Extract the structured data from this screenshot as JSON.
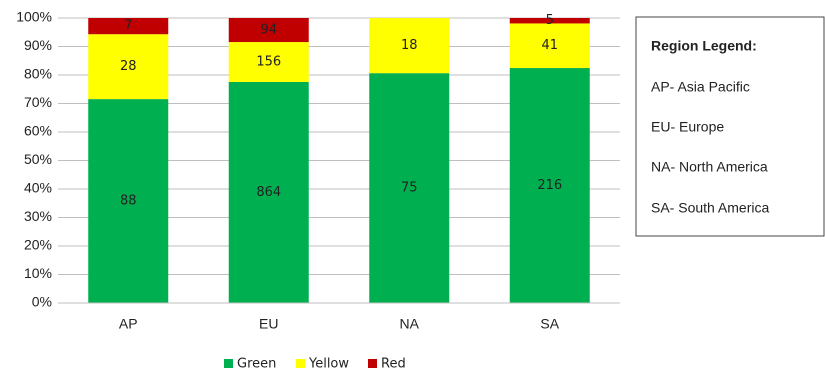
{
  "chart_data": {
    "type": "bar",
    "stacking": "percent",
    "categories": [
      "AP",
      "EU",
      "NA",
      "SA"
    ],
    "series": [
      {
        "name": "Green",
        "color": "#00b050",
        "values": [
          88,
          864,
          75,
          216
        ]
      },
      {
        "name": "Yellow",
        "color": "#ffff00",
        "values": [
          28,
          156,
          18,
          41
        ]
      },
      {
        "name": "Red",
        "color": "#c00000",
        "values": [
          7,
          94,
          null,
          5
        ]
      }
    ],
    "ylim": [
      0,
      100
    ],
    "yticks": [
      {
        "value": 0,
        "label": "0%"
      },
      {
        "value": 10,
        "label": "10%"
      },
      {
        "value": 20,
        "label": "20%"
      },
      {
        "value": 30,
        "label": "30%"
      },
      {
        "value": 40,
        "label": "40%"
      },
      {
        "value": 50,
        "label": "50%"
      },
      {
        "value": 60,
        "label": "60%"
      },
      {
        "value": 70,
        "label": "70%"
      },
      {
        "value": 80,
        "label": "80%"
      },
      {
        "value": 90,
        "label": "90%"
      },
      {
        "value": 100,
        "label": "100%"
      }
    ],
    "grid": true,
    "legend": "bottom",
    "note_box": {
      "title": "Region Legend:",
      "items": [
        "AP- Asia Pacific",
        "EU- Europe",
        "NA- North America",
        "SA- South America"
      ]
    }
  }
}
